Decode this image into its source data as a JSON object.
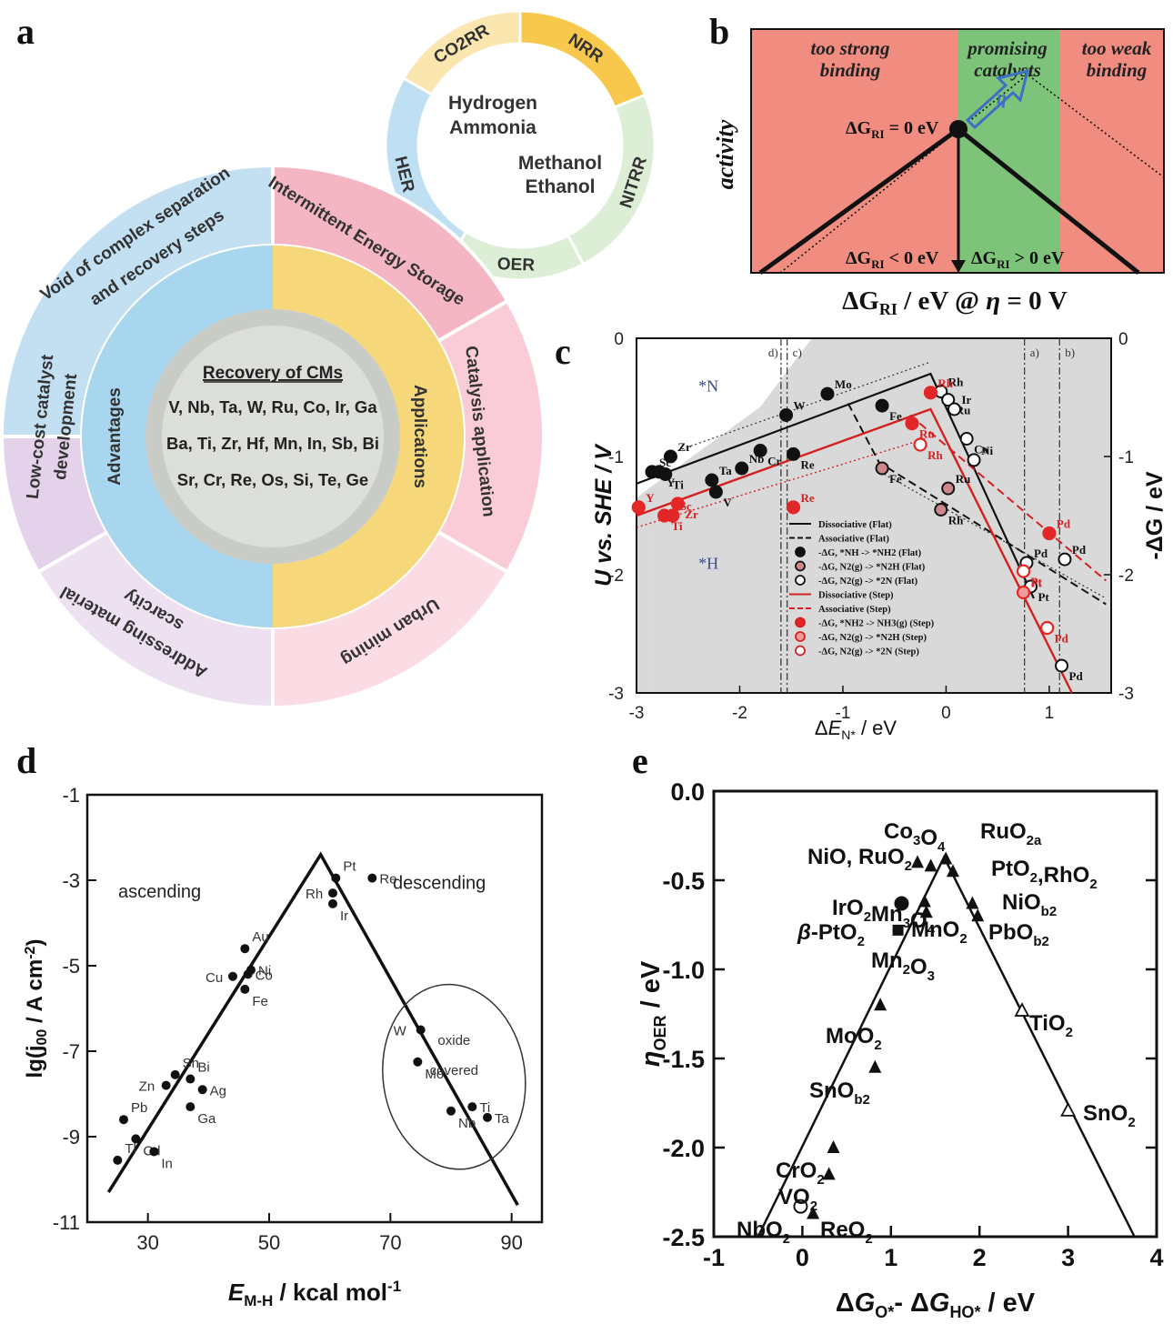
{
  "panel_labels": {
    "a": "a",
    "b": "b",
    "c": "c",
    "d": "d",
    "e": "e"
  },
  "panel_a": {
    "ring_segments": [
      "CO2RR",
      "NRR",
      "NITRR",
      "OER",
      "HER"
    ],
    "ring_center": [
      "Hydrogen",
      "Ammonia",
      "Methanol",
      "Ethanol"
    ],
    "outer_segments": [
      "Void of complex separation",
      "and recovery steps",
      "Intermittent Energy Storage",
      "Catalysis application",
      "Urban mining",
      "Addressing material",
      "scarcity",
      "Low-cost catalyst",
      "development"
    ],
    "inner_left": "Advantages",
    "inner_right": "Applications",
    "center_title": "Recovery of CMs",
    "elements_lines": [
      "V, Nb, Ta, W, Ru, Co, Ir, Ga",
      "Ba, Ti, Zr, Hf, Mn, In, Sb, Bi",
      "Sr, Cr, Re, Os, Si, Te, Ge"
    ],
    "colors": {
      "blue": "#bfe0f2",
      "pink": "#f5b3c2",
      "yellow": "#f7d98a",
      "lilac": "#dcc8e6",
      "mint": "#cfe8c8",
      "green": "#a6d8a0"
    }
  },
  "chart_data": [
    {
      "panel": "b",
      "type": "line",
      "regions": [
        "too strong binding",
        "promising catalysts",
        "too weak binding"
      ],
      "region_colors": [
        "#f08c80",
        "#7dc47a",
        "#f08c80"
      ],
      "ylabel": "activity",
      "xlabel": "ΔGRI / eV @ η = 0 V",
      "annotations": [
        "ΔGRI = 0 eV",
        "ΔGRI < 0 eV",
        "ΔGRI > 0 eV",
        "η"
      ]
    },
    {
      "panel": "c",
      "type": "scatter",
      "xlabel": "ΔEN* / eV",
      "ylabel": "U vs. SHE / V",
      "y2label": "-ΔG / eV",
      "xlim": [
        -3,
        1.6
      ],
      "ylim": [
        -3,
        0
      ],
      "xticks": [
        -3,
        -2,
        -1,
        0,
        1
      ],
      "yticks": [
        0,
        -1,
        -2,
        -3
      ],
      "y2ticks": [
        "0",
        "-1",
        "-2",
        "-3"
      ],
      "regions": [
        "*N",
        "*H"
      ],
      "vline_labels": [
        "d)",
        "c)",
        "a)",
        "b)"
      ],
      "legend": [
        "Dissociative (Flat)",
        "Associative (Flat)",
        "-ΔG, *NH -> *NH2 (Flat)",
        "-ΔG, N2(g) -> *N2H (Flat)",
        "-ΔG, N2(g) -> *2N (Flat)",
        "Dissociative (Step)",
        "Associative (Step)",
        "-ΔG, *NH2 -> NH3(g) (Step)",
        "-ΔG, N2(g) -> *N2H (Step)",
        "-ΔG, N2(g) -> *2N (Step)"
      ],
      "flat_points": [
        {
          "label": "Sc",
          "x": -2.85,
          "y": -1.13
        },
        {
          "label": "Y",
          "x": -2.78,
          "y": -1.13
        },
        {
          "label": "Zr",
          "x": -2.67,
          "y": -1.0
        },
        {
          "label": "Ti",
          "x": -2.72,
          "y": -1.15
        },
        {
          "label": "Ta",
          "x": -2.27,
          "y": -1.2
        },
        {
          "label": "V",
          "x": -2.23,
          "y": -1.3
        },
        {
          "label": "Nb",
          "x": -1.98,
          "y": -1.1
        },
        {
          "label": "Cr",
          "x": -1.8,
          "y": -0.95
        },
        {
          "label": "W",
          "x": -1.55,
          "y": -0.65
        },
        {
          "label": "Re",
          "x": -1.48,
          "y": -0.98
        },
        {
          "label": "Mo",
          "x": -1.15,
          "y": -0.47
        },
        {
          "label": "Fe",
          "x": -0.62,
          "y": -0.57
        },
        {
          "label": "Rh",
          "x": -0.05,
          "y": -0.45
        },
        {
          "label": "Ru",
          "x": 0.02,
          "y": -0.52
        },
        {
          "label": "Ir",
          "x": 0.08,
          "y": -0.6
        },
        {
          "label": "Co",
          "x": 0.2,
          "y": -0.85
        },
        {
          "label": "Ni",
          "x": 0.27,
          "y": -1.03
        },
        {
          "label": "Fe",
          "x": -0.62,
          "y": -1.1
        },
        {
          "label": "Ru",
          "x": 0.02,
          "y": -1.27
        },
        {
          "label": "Rh",
          "x": -0.05,
          "y": -1.45
        },
        {
          "label": "Pd",
          "x": 0.78,
          "y": -1.9
        },
        {
          "label": "Pt",
          "x": 0.82,
          "y": -2.1
        },
        {
          "label": "Pd",
          "x": 1.15,
          "y": -1.87
        },
        {
          "label": "Pd",
          "x": 1.12,
          "y": -2.77
        }
      ],
      "step_points": [
        {
          "label": "Y",
          "x": -2.98,
          "y": -1.43
        },
        {
          "label": "Ti",
          "x": -2.73,
          "y": -1.5
        },
        {
          "label": "Sc",
          "x": -2.65,
          "y": -1.5
        },
        {
          "label": "Zr",
          "x": -2.6,
          "y": -1.4
        },
        {
          "label": "Re",
          "x": -1.48,
          "y": -1.43
        },
        {
          "label": "Ru",
          "x": -0.33,
          "y": -0.72
        },
        {
          "label": "Rh",
          "x": -0.15,
          "y": -0.46
        },
        {
          "label": "Rh",
          "x": -0.25,
          "y": -0.9
        },
        {
          "label": "Pd",
          "x": 1.0,
          "y": -1.65
        },
        {
          "label": "Pt",
          "x": 0.75,
          "y": -1.97
        },
        {
          "label": "Pt",
          "x": 0.75,
          "y": -2.15
        },
        {
          "label": "Pd",
          "x": 0.98,
          "y": -2.45
        }
      ]
    },
    {
      "panel": "d",
      "type": "scatter",
      "xlabel": "EM-H / kcal mol-1",
      "ylabel": "lg(j00 / A cm-2)",
      "xlim": [
        20,
        95
      ],
      "ylim": [
        -11,
        -1
      ],
      "xticks": [
        30,
        50,
        70,
        90
      ],
      "yticks": [
        -1,
        -3,
        -5,
        -7,
        -9,
        -11
      ],
      "annotations": [
        "ascending",
        "descending",
        "oxide",
        "covered"
      ],
      "points": [
        {
          "label": "Tl",
          "x": 25,
          "y": -9.55
        },
        {
          "label": "Pb",
          "x": 26,
          "y": -8.6
        },
        {
          "label": "Cd",
          "x": 28,
          "y": -9.05
        },
        {
          "label": "In",
          "x": 31,
          "y": -9.35
        },
        {
          "label": "Zn",
          "x": 33,
          "y": -7.8
        },
        {
          "label": "Sn",
          "x": 34.5,
          "y": -7.55
        },
        {
          "label": "Bi",
          "x": 37,
          "y": -7.65
        },
        {
          "label": "Ga",
          "x": 37,
          "y": -8.3
        },
        {
          "label": "Ag",
          "x": 39,
          "y": -7.9
        },
        {
          "label": "Cu",
          "x": 44,
          "y": -5.25
        },
        {
          "label": "Au",
          "x": 46,
          "y": -4.6
        },
        {
          "label": "Ni",
          "x": 47,
          "y": -5.1
        },
        {
          "label": "Co",
          "x": 46.5,
          "y": -5.2
        },
        {
          "label": "Fe",
          "x": 46,
          "y": -5.55
        },
        {
          "label": "Pt",
          "x": 61,
          "y": -2.95
        },
        {
          "label": "Rh",
          "x": 60.5,
          "y": -3.3
        },
        {
          "label": "Ir",
          "x": 60.5,
          "y": -3.55
        },
        {
          "label": "Re",
          "x": 67,
          "y": -2.95
        },
        {
          "label": "W",
          "x": 75,
          "y": -6.5
        },
        {
          "label": "Mo",
          "x": 74.5,
          "y": -7.25
        },
        {
          "label": "Nb",
          "x": 80,
          "y": -8.4
        },
        {
          "label": "Ti",
          "x": 83.5,
          "y": -8.3
        },
        {
          "label": "Ta",
          "x": 86,
          "y": -8.55
        }
      ]
    },
    {
      "panel": "e",
      "type": "scatter",
      "xlabel": "ΔGO* - ΔGHO* / eV",
      "ylabel": "ηOER / eV",
      "xlim": [
        -1,
        4
      ],
      "ylim": [
        -2.5,
        0.0
      ],
      "xticks": [
        -1,
        0,
        1,
        2,
        3,
        4
      ],
      "yticks": [
        "0.0",
        "-0.5",
        "-1.0",
        "-1.5",
        "-2.0",
        "-2.5"
      ],
      "point_labels": [
        "Co3O4",
        "RuO2a",
        "NiO, RuO2",
        "PtO2,RhO2",
        "IrO2",
        "Mn3O4",
        "NiOb2",
        "β-PtO2",
        "MnO2",
        "PbOb2",
        "Mn2O3",
        "MoO2",
        "TiO2",
        "SnOb2",
        "SnO2",
        "CrO2",
        "VO2",
        "NbO2",
        "ReO2"
      ],
      "points": [
        {
          "label": "RuO2a",
          "x": 1.62,
          "y": -0.38
        },
        {
          "label": "Co3O4",
          "x": 1.45,
          "y": -0.42
        },
        {
          "label": "NiO",
          "x": 1.3,
          "y": -0.4
        },
        {
          "label": "PtO2",
          "x": 1.7,
          "y": -0.45
        },
        {
          "label": "IrO2",
          "x": 1.12,
          "y": -0.63
        },
        {
          "label": "Mn3O4",
          "x": 1.38,
          "y": -0.62
        },
        {
          "label": "NiOb2",
          "x": 1.92,
          "y": -0.63
        },
        {
          "label": "MnO2",
          "x": 1.4,
          "y": -0.68
        },
        {
          "label": "PbOb2",
          "x": 1.98,
          "y": -0.7
        },
        {
          "label": "Mn2O3",
          "x": 1.08,
          "y": -0.78
        },
        {
          "label": "MoO2",
          "x": 0.88,
          "y": -1.2
        },
        {
          "label": "TiO2",
          "x": 2.48,
          "y": -1.23
        },
        {
          "label": "SnOb2",
          "x": 0.82,
          "y": -1.55
        },
        {
          "label": "SnO2",
          "x": 3.0,
          "y": -1.79
        },
        {
          "label": "CrO2",
          "x": 0.35,
          "y": -2.0
        },
        {
          "label": "VO2",
          "x": 0.3,
          "y": -2.15
        },
        {
          "label": "NbO2",
          "x": -0.02,
          "y": -2.33
        },
        {
          "label": "ReO2",
          "x": 0.12,
          "y": -2.37
        }
      ]
    }
  ]
}
